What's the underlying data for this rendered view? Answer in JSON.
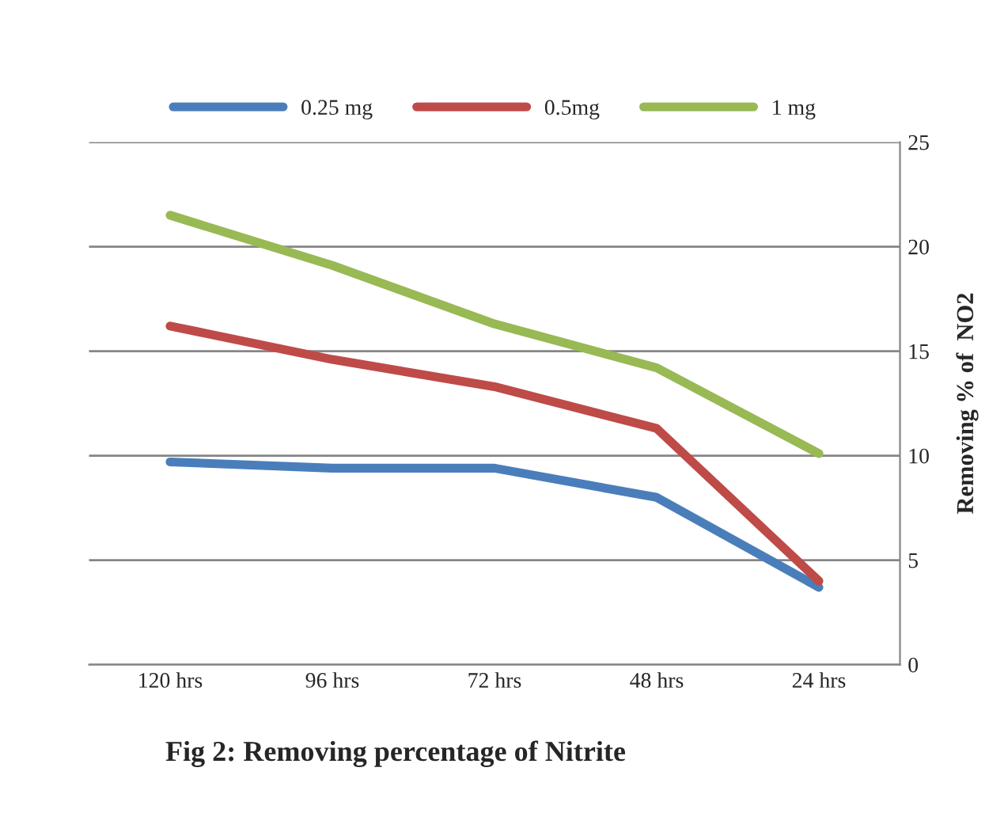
{
  "chart_data": {
    "type": "line",
    "title": "Fig 2: Removing percentage of Nitrite",
    "ylabel": "Removing % of  NO2",
    "categories": [
      "120 hrs",
      "96 hrs",
      "72 hrs",
      "48 hrs",
      "24 hrs"
    ],
    "series": [
      {
        "name": "0.25 mg",
        "color": "#4a7ebb",
        "values": [
          9.7,
          9.4,
          9.4,
          8.0,
          3.7
        ]
      },
      {
        "name": "0.5mg",
        "color": "#be4b48",
        "values": [
          16.2,
          14.6,
          13.3,
          11.3,
          4.0
        ]
      },
      {
        "name": "1 mg",
        "color": "#98b954",
        "values": [
          21.5,
          19.1,
          16.3,
          14.2,
          10.1
        ]
      }
    ],
    "ylim": [
      0,
      25
    ],
    "yticks": [
      0,
      5,
      10,
      15,
      20,
      25
    ],
    "grid": "y",
    "legend": "top",
    "marker": "none",
    "line_style": "solid"
  }
}
